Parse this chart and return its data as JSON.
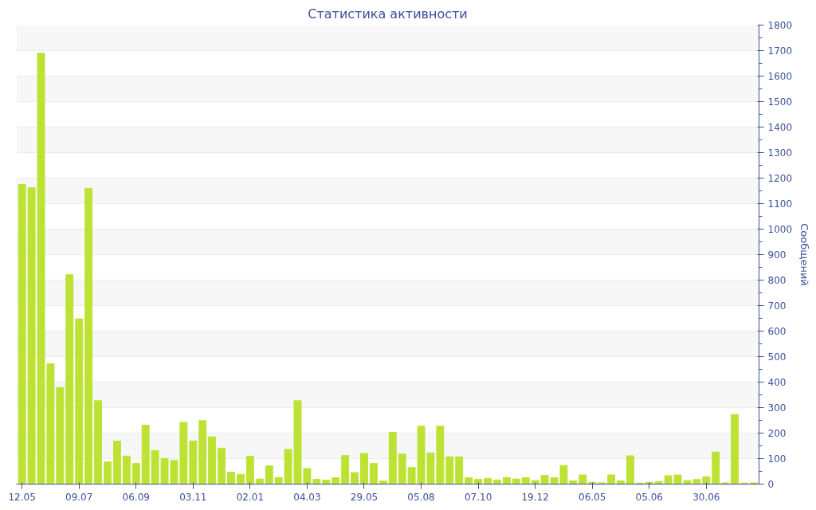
{
  "chart_data": {
    "type": "bar",
    "title": "Статистика активности",
    "ylabel": "Сообщений",
    "categories": [
      "12.05",
      null,
      null,
      null,
      null,
      null,
      "09.07",
      null,
      null,
      null,
      null,
      null,
      "06.09",
      null,
      null,
      null,
      null,
      null,
      "03.11",
      null,
      null,
      null,
      null,
      null,
      "02.01",
      null,
      null,
      null,
      null,
      null,
      "04.03",
      null,
      null,
      null,
      null,
      null,
      "29.05",
      null,
      null,
      null,
      null,
      null,
      "05.08",
      null,
      null,
      null,
      null,
      null,
      "07.10",
      null,
      null,
      null,
      null,
      null,
      "19.12",
      null,
      null,
      null,
      null,
      null,
      "06.05",
      null,
      null,
      null,
      null,
      null,
      "05.06",
      null,
      null,
      null,
      null,
      null,
      "30.06",
      null,
      null,
      null,
      null,
      null
    ],
    "values": [
      1175,
      1162,
      1690,
      472,
      379,
      821,
      648,
      1160,
      327,
      87,
      169,
      110,
      81,
      231,
      131,
      100,
      93,
      242,
      169,
      249,
      185,
      141,
      47,
      38,
      109,
      20,
      71,
      26,
      136,
      327,
      61,
      19,
      16,
      25,
      112,
      45,
      120,
      81,
      12,
      203,
      118,
      65,
      227,
      122,
      227,
      107,
      107,
      25,
      19,
      22,
      16,
      26,
      20,
      25,
      14,
      34,
      25,
      73,
      13,
      36,
      7,
      5,
      36,
      13,
      111,
      4,
      7,
      10,
      33,
      36,
      14,
      18,
      29,
      126,
      5,
      273,
      4,
      5
    ],
    "color": "#bde234",
    "ylim": [
      0,
      1800
    ],
    "yticks": [
      0,
      100,
      200,
      300,
      400,
      500,
      600,
      700,
      800,
      900,
      1000,
      1100,
      1200,
      1300,
      1400,
      1500,
      1600,
      1700,
      1800
    ],
    "grid": "y"
  }
}
